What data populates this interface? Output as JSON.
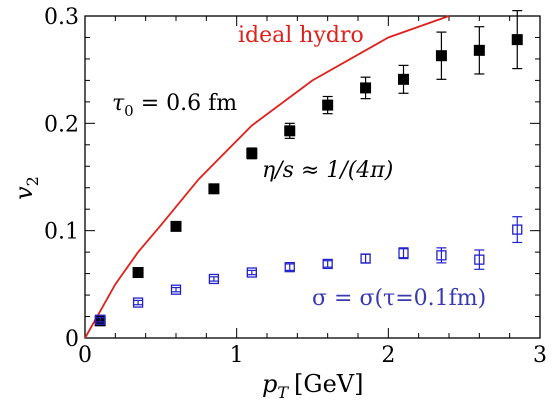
{
  "chart_data": {
    "type": "scatter",
    "xlabel_var": "p",
    "xlabel_sub": "T",
    "xlabel_unit": "[GeV]",
    "ylabel_var": "v",
    "ylabel_sub": "2",
    "xlim": [
      0,
      3
    ],
    "ylim": [
      0,
      0.3
    ],
    "x_ticks": [
      "0",
      "1",
      "2",
      "3"
    ],
    "y_ticks": [
      "0",
      "0.1",
      "0.2",
      "0.3"
    ],
    "grid": false,
    "legend": "none",
    "series": [
      {
        "name": "ideal hydro",
        "style": "line",
        "color": "#e0201c",
        "x": [
          0.0,
          0.1,
          0.2,
          0.35,
          0.5,
          0.75,
          1.1,
          1.5,
          2.0,
          2.4
        ],
        "y": [
          0.0,
          0.025,
          0.05,
          0.08,
          0.105,
          0.148,
          0.198,
          0.24,
          0.28,
          0.3
        ]
      },
      {
        "name": "eta/s ≈ 1/(4π)",
        "style": "filled-square",
        "color": "#000000",
        "x": [
          0.1,
          0.35,
          0.6,
          0.85,
          1.1,
          1.35,
          1.6,
          1.85,
          2.1,
          2.35,
          2.6,
          2.85
        ],
        "y": [
          0.016,
          0.061,
          0.104,
          0.139,
          0.172,
          0.193,
          0.217,
          0.233,
          0.241,
          0.263,
          0.268,
          0.278
        ],
        "err": [
          0.003,
          0.003,
          0.004,
          0.004,
          0.005,
          0.007,
          0.008,
          0.01,
          0.013,
          0.022,
          0.022,
          0.027
        ]
      },
      {
        "name": "sigma = sigma(tau=0.1fm)",
        "style": "open-square",
        "color": "#2222cc",
        "x": [
          0.1,
          0.35,
          0.6,
          0.85,
          1.1,
          1.35,
          1.6,
          1.85,
          2.1,
          2.35,
          2.6,
          2.85
        ],
        "y": [
          0.017,
          0.033,
          0.045,
          0.055,
          0.061,
          0.066,
          0.069,
          0.074,
          0.079,
          0.077,
          0.073,
          0.101
        ],
        "err": [
          0.002,
          0.002,
          0.002,
          0.002,
          0.002,
          0.003,
          0.003,
          0.004,
          0.005,
          0.007,
          0.009,
          0.012
        ]
      }
    ],
    "annotations": {
      "ideal_hydro": "ideal hydro",
      "tau0_var": "τ",
      "tau0_sub": "0",
      "tau0_rest": " = 0.6 fm",
      "eta_s": "η/s ≈ 1/(4π)",
      "sigma": "σ = σ(τ=0.1fm)"
    }
  }
}
